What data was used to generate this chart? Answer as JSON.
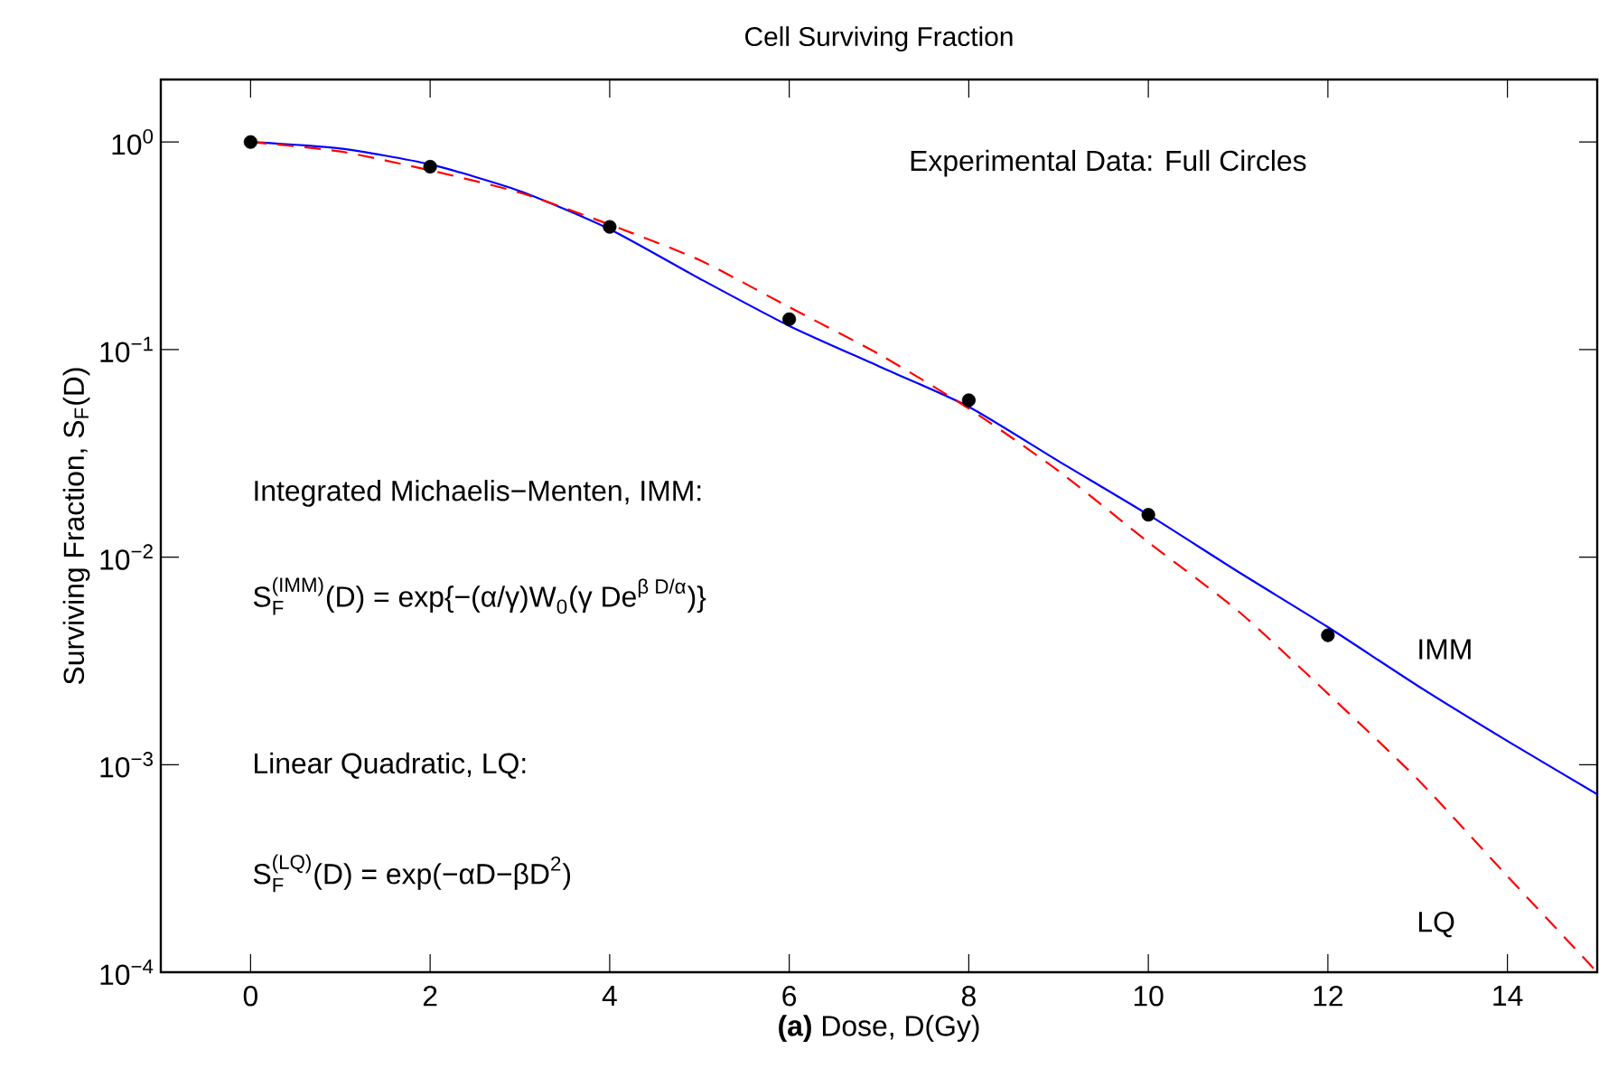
{
  "chart_data": {
    "type": "line",
    "title": "Cell Surviving Fraction",
    "xlabel": "**(a)** Dose, D(Gy)",
    "ylabel": "Surviving Fraction, S$_{F}$(D)",
    "log": "y",
    "xlim": [
      -1,
      15
    ],
    "ylim": [
      0.0001,
      2
    ],
    "xticks": [
      0,
      2,
      4,
      6,
      8,
      10,
      12,
      14
    ],
    "yticks": [
      {
        "value": 1,
        "label": "10$^{0}$"
      },
      {
        "value": 0.1,
        "label": "10$^{−1}$"
      },
      {
        "value": 0.01,
        "label": "10$^{−2}$"
      },
      {
        "value": 0.001,
        "label": "10$^{−3}$"
      },
      {
        "value": 0.0001,
        "label": "10$^{−4}$"
      }
    ],
    "annotations": [
      "Experimental Data: Full Circles",
      "Integrated Michaelis−Menten, IMM:",
      "\\text{S}_{\\text{F}}^{\\text{(IMM)}}\\text{(D) = exp\\{−(α/γ)W}_{\\text{0}}\\text{(γ De}^{\\text{β D/α}}\\text{)\\}}",
      "Linear Quadratic, LQ:",
      "\\text{S}_{\\text{F}}^{\\text{(LQ)}}\\text{(D) = exp(−αD−βD}^{\\text{2}}\\text{)}"
    ],
    "series": [
      {
        "type": "scatter",
        "color": "#000000",
        "x": [
          0,
          2,
          4,
          6,
          8,
          10,
          12
        ],
        "values": [
          1,
          0.76,
          0.39,
          0.14,
          0.057,
          0.016,
          0.0042
        ]
      },
      {
        "name": "IMM",
        "color": "#0000ff",
        "line_style": "solid",
        "marker": "none",
        "x": [
          0,
          1,
          2,
          3,
          4,
          5,
          6,
          7,
          8,
          9,
          10,
          11,
          12,
          13,
          14,
          15
        ],
        "values": [
          1,
          0.93,
          0.78,
          0.58,
          0.38,
          0.22,
          0.13,
          0.083,
          0.053,
          0.029,
          0.016,
          0.0085,
          0.0046,
          0.0024,
          0.0013,
          0.00072
        ]
      },
      {
        "name": "LQ",
        "color": "#ff0000",
        "line_style": "dashed",
        "marker": "none",
        "x": [
          0,
          1,
          2,
          3,
          4,
          5,
          6,
          7,
          8,
          9,
          10,
          11,
          12,
          13,
          14,
          15
        ],
        "values": [
          1,
          0.9,
          0.73,
          0.57,
          0.4,
          0.27,
          0.16,
          0.095,
          0.052,
          0.026,
          0.0118,
          0.0055,
          0.0022,
          0.00085,
          0.00029,
          0.0001
        ]
      }
    ]
  }
}
